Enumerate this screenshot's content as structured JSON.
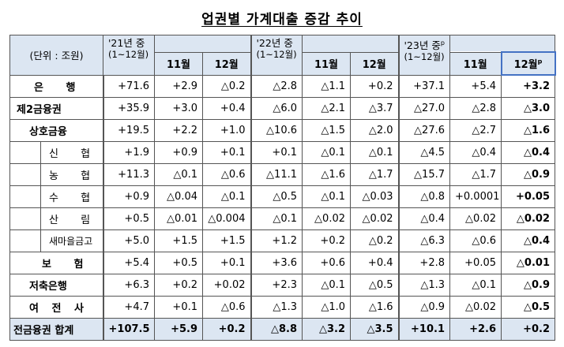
{
  "title": "업권별 가계대출 증감 추이",
  "header": {
    "unit_label": "(단위 : 조원)",
    "periods": [
      {
        "year_label": "'21년 중",
        "range_label": "(1~12월)",
        "months": [
          "11월",
          "12월"
        ]
      },
      {
        "year_label": "'22년 중",
        "range_label": "(1~12월)",
        "months": [
          "11월",
          "12월"
        ]
      },
      {
        "year_label": "'23년 중",
        "year_sup": "p",
        "range_label": "(1~12월)",
        "months": [
          "11월",
          "12월"
        ],
        "last_month_sup": "p"
      }
    ]
  },
  "rows": [
    {
      "label": "은 행",
      "values": [
        "+71.6",
        "+2.9",
        "△0.2",
        "△2.8",
        "△1.1",
        "+0.2",
        "+37.1",
        "+5.4",
        "+3.2"
      ]
    },
    {
      "label": "제2금융권",
      "values": [
        "+35.9",
        "+3.0",
        "+0.4",
        "△6.0",
        "△2.1",
        "△3.7",
        "△27.0",
        "△2.8",
        "△3.0"
      ]
    },
    {
      "label": "상호금융",
      "values": [
        "+19.5",
        "+2.2",
        "+1.0",
        "△10.6",
        "△1.5",
        "△2.0",
        "△27.6",
        "△2.7",
        "△1.6"
      ]
    },
    {
      "label": "신 협",
      "values": [
        "+1.9",
        "+0.9",
        "+0.1",
        "+0.1",
        "△0.1",
        "△0.1",
        "△4.5",
        "△0.4",
        "△0.4"
      ]
    },
    {
      "label": "농 협",
      "values": [
        "+11.3",
        "△0.1",
        "△0.6",
        "△11.1",
        "△1.6",
        "△1.7",
        "△15.7",
        "△1.7",
        "△0.9"
      ]
    },
    {
      "label": "수 협",
      "values": [
        "+0.9",
        "△0.04",
        "△0.1",
        "△0.5",
        "△0.1",
        "△0.03",
        "△0.8",
        "+0.0001",
        "+0.05"
      ]
    },
    {
      "label": "산 림",
      "values": [
        "+0.5",
        "△0.01",
        "△0.004",
        "△0.1",
        "△0.02",
        "△0.02",
        "△0.4",
        "△0.02",
        "△0.02"
      ]
    },
    {
      "label": "새마을금고",
      "values": [
        "+5.0",
        "+1.5",
        "+1.5",
        "+1.2",
        "+0.2",
        "△0.2",
        "△6.3",
        "△0.6",
        "△0.4"
      ]
    },
    {
      "label": "보 험",
      "values": [
        "+5.4",
        "+0.5",
        "+0.1",
        "+3.6",
        "+0.6",
        "+0.4",
        "+2.8",
        "+0.05",
        "△0.01"
      ]
    },
    {
      "label": "저축은행",
      "values": [
        "+6.3",
        "+0.2",
        "+0.02",
        "+2.3",
        "△0.1",
        "△0.5",
        "△1.3",
        "△0.1",
        "△0.9"
      ]
    },
    {
      "label": "여 전 사",
      "values": [
        "+4.7",
        "+0.1",
        "△0.6",
        "△1.3",
        "△1.0",
        "△1.6",
        "△0.9",
        "△0.02",
        "△0.5"
      ]
    }
  ],
  "total": {
    "label": "전금융권 합계",
    "values": [
      "+107.5",
      "+5.9",
      "+0.2",
      "△8.8",
      "△3.2",
      "△3.5",
      "+10.1",
      "+2.6",
      "+0.2"
    ]
  }
}
